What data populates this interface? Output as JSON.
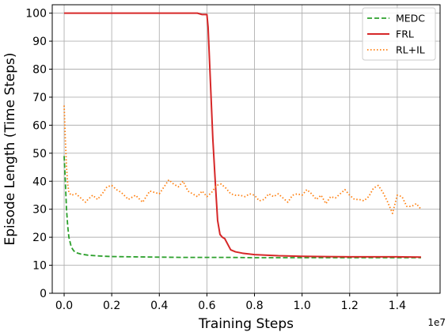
{
  "chart_data": {
    "type": "line",
    "xlabel": "Training Steps",
    "ylabel": "Episode Length (Time Steps)",
    "x_offset_label": "1e7",
    "xlim": [
      -0.05,
      1.58
    ],
    "ylim": [
      0,
      103
    ],
    "x_ticks": [
      0.0,
      0.2,
      0.4,
      0.6,
      0.8,
      1.0,
      1.2,
      1.4
    ],
    "x_tick_labels": [
      "0.0",
      "0.2",
      "0.4",
      "0.6",
      "0.8",
      "1.0",
      "1.2",
      "1.4"
    ],
    "y_ticks": [
      0,
      10,
      20,
      30,
      40,
      50,
      60,
      70,
      80,
      90,
      100
    ],
    "y_tick_labels": [
      "0",
      "10",
      "20",
      "30",
      "40",
      "50",
      "60",
      "70",
      "80",
      "90",
      "100"
    ],
    "grid": true,
    "legend_position": "top-right",
    "series": [
      {
        "name": "MEDC",
        "color": "#2ca02c",
        "dash": "dashed",
        "x": [
          0.0,
          0.005,
          0.01,
          0.015,
          0.02,
          0.03,
          0.04,
          0.05,
          0.07,
          0.1,
          0.15,
          0.2,
          0.3,
          0.4,
          0.5,
          0.6,
          0.7,
          0.8,
          0.9,
          1.0,
          1.1,
          1.2,
          1.3,
          1.4,
          1.5
        ],
        "y": [
          49,
          40,
          30,
          24,
          20,
          16.5,
          15.2,
          14.5,
          14.0,
          13.6,
          13.3,
          13.1,
          13.0,
          12.9,
          12.8,
          12.8,
          12.8,
          12.7,
          12.7,
          12.7,
          12.7,
          12.7,
          12.7,
          12.7,
          12.7
        ]
      },
      {
        "name": "FRL",
        "color": "#d62728",
        "dash": "solid",
        "x": [
          0.0,
          0.1,
          0.2,
          0.3,
          0.4,
          0.5,
          0.56,
          0.58,
          0.6,
          0.605,
          0.615,
          0.625,
          0.635,
          0.645,
          0.655,
          0.665,
          0.675,
          0.7,
          0.72,
          0.75,
          0.8,
          0.9,
          1.0,
          1.1,
          1.2,
          1.3,
          1.4,
          1.5
        ],
        "y": [
          100,
          100,
          100,
          100,
          100,
          100,
          100,
          99.5,
          99.5,
          95,
          75,
          55,
          40,
          26,
          21,
          20,
          19.5,
          15.5,
          14.8,
          14.3,
          13.8,
          13.4,
          13.2,
          13.1,
          13.0,
          13.0,
          13.0,
          12.9
        ]
      },
      {
        "name": "RL+IL",
        "color": "#ff7f0e",
        "dash": "dotted",
        "x": [
          0.0,
          0.005,
          0.01,
          0.015,
          0.02,
          0.03,
          0.05,
          0.07,
          0.09,
          0.1,
          0.12,
          0.14,
          0.16,
          0.18,
          0.2,
          0.22,
          0.24,
          0.27,
          0.3,
          0.33,
          0.36,
          0.38,
          0.4,
          0.42,
          0.44,
          0.46,
          0.48,
          0.5,
          0.52,
          0.54,
          0.56,
          0.58,
          0.6,
          0.62,
          0.64,
          0.66,
          0.68,
          0.7,
          0.72,
          0.74,
          0.76,
          0.78,
          0.8,
          0.82,
          0.84,
          0.86,
          0.88,
          0.9,
          0.92,
          0.94,
          0.96,
          0.98,
          1.0,
          1.02,
          1.04,
          1.06,
          1.08,
          1.1,
          1.12,
          1.14,
          1.16,
          1.18,
          1.2,
          1.22,
          1.24,
          1.26,
          1.28,
          1.3,
          1.32,
          1.34,
          1.36,
          1.38,
          1.4,
          1.42,
          1.44,
          1.46,
          1.48,
          1.5
        ],
        "y": [
          67,
          55,
          45,
          39,
          36,
          35,
          35.5,
          34,
          32.5,
          33.5,
          35,
          33.5,
          35.5,
          38,
          38.5,
          37,
          36,
          33.5,
          35,
          32.5,
          36.5,
          36,
          35.5,
          38,
          40.5,
          39,
          38,
          40,
          36.5,
          35.5,
          34.5,
          36.5,
          34.5,
          36,
          38.5,
          39,
          37.5,
          35.5,
          35,
          35,
          34.5,
          35.5,
          35,
          33,
          33.5,
          35.5,
          34.5,
          35.5,
          34,
          32.5,
          35,
          35.5,
          35,
          37,
          35.5,
          33.5,
          35,
          32,
          34.5,
          34,
          35.5,
          37,
          35,
          33.5,
          33.5,
          33,
          34.5,
          37.5,
          38.5,
          36,
          32.5,
          28.5,
          35,
          34.5,
          31,
          31,
          32,
          30
        ]
      }
    ]
  }
}
